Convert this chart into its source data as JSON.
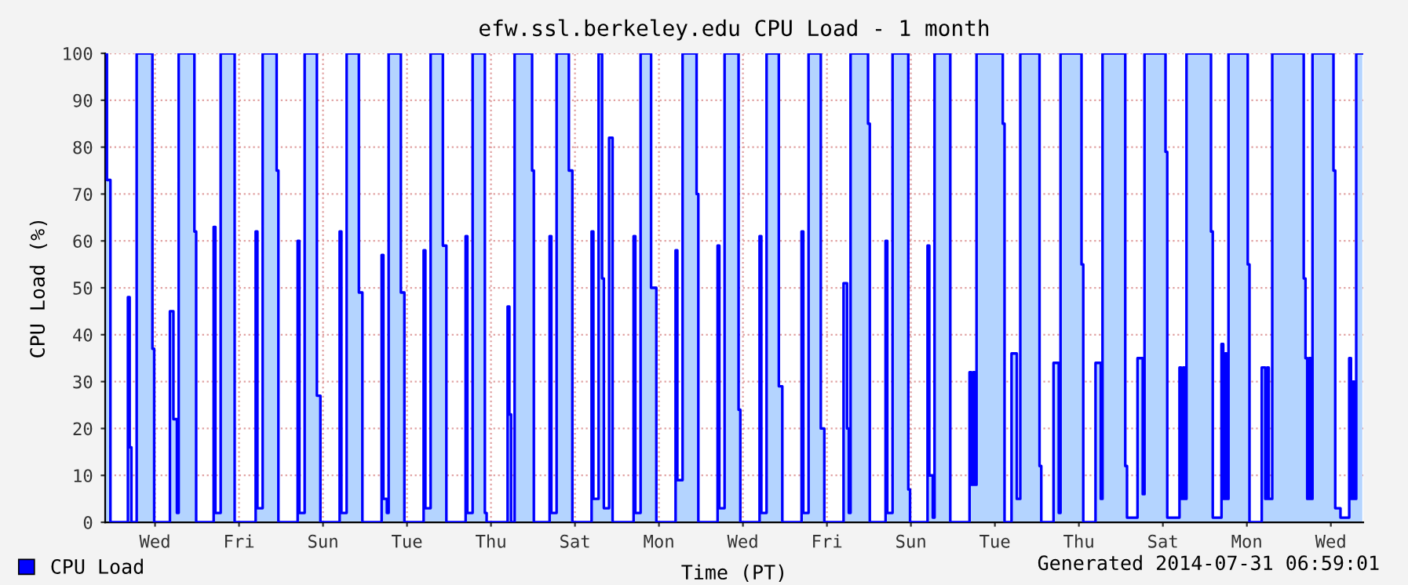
{
  "chart_data": {
    "type": "area",
    "title": "efw.ssl.berkeley.edu CPU Load - 1 month",
    "xlabel": "Time (PT)",
    "ylabel": "CPU Load (%)",
    "annotations": [
      "Generated 2014-07-31 06:59:01"
    ],
    "legend": "bottom left",
    "grid": true,
    "line_style": "solid",
    "categories": [
      null,
      null,
      null,
      null,
      null,
      null,
      null,
      null,
      null,
      null,
      null,
      null,
      null,
      null,
      null,
      null,
      null,
      null,
      null,
      null,
      null,
      null,
      null,
      null,
      null,
      null,
      null,
      null,
      "Wed",
      null,
      null,
      null,
      null,
      null,
      null,
      null,
      null,
      null,
      null,
      null,
      null,
      null,
      null,
      null,
      null,
      null,
      null,
      null,
      null,
      null,
      null,
      null,
      null,
      null,
      null,
      null,
      null,
      null,
      null,
      null,
      null,
      null,
      null,
      null,
      null,
      null,
      null,
      null,
      null,
      null,
      null,
      null,
      null,
      null,
      null,
      null,
      "Fri",
      null,
      null,
      null,
      null,
      null,
      null,
      null,
      null,
      null,
      null,
      null,
      null,
      null,
      null,
      null,
      null,
      null,
      null,
      null,
      null,
      null,
      null,
      null,
      null,
      null,
      null,
      null,
      null,
      null,
      null,
      null,
      null,
      null,
      null,
      null,
      null,
      null,
      null,
      null,
      null,
      null,
      null,
      null,
      null,
      null,
      null,
      null,
      "Sun",
      null,
      null,
      null,
      null,
      null,
      null,
      null,
      null,
      null,
      null,
      null,
      null,
      null,
      null,
      null,
      null,
      null,
      null,
      null,
      null,
      null,
      null,
      null,
      null,
      null,
      null,
      null,
      null,
      null,
      null,
      null,
      null,
      null,
      null,
      null,
      null,
      null,
      null,
      null,
      null,
      null,
      null,
      null,
      null,
      null,
      null,
      null,
      "Tue",
      null,
      null,
      null,
      null,
      null,
      null,
      null,
      null,
      null,
      null,
      null,
      null,
      null,
      null,
      null,
      null,
      null,
      null,
      null,
      null,
      null,
      null,
      null,
      null,
      null,
      null,
      null,
      null,
      null,
      null,
      null,
      null,
      null,
      null,
      null,
      null,
      null,
      null,
      null,
      null,
      null,
      null,
      null,
      null,
      null,
      null,
      null,
      "Thu",
      null,
      null,
      null,
      null,
      null,
      null,
      null,
      null,
      null,
      null,
      null,
      null,
      null,
      null,
      null,
      null,
      null,
      null,
      null,
      null,
      null,
      null,
      null,
      null,
      null,
      null,
      null,
      null,
      null,
      null,
      null,
      null,
      null,
      null,
      null,
      null,
      null,
      null,
      null,
      null,
      null,
      null,
      null,
      null,
      null,
      null,
      null,
      "Sat",
      null,
      null,
      null,
      null,
      null,
      null,
      null,
      null,
      null,
      null,
      null,
      null,
      null,
      null,
      null,
      null,
      null,
      null,
      null,
      null,
      null,
      null,
      null,
      null,
      null,
      null,
      null,
      null,
      null,
      null,
      null,
      null,
      null,
      null,
      null,
      null,
      null,
      null,
      null,
      null,
      null,
      null,
      null,
      null,
      null,
      null,
      null,
      "Mon",
      null,
      null,
      null,
      null,
      null,
      null,
      null,
      null,
      null,
      null,
      null,
      null,
      null,
      null,
      null,
      null,
      null,
      null,
      null,
      null,
      null,
      null,
      null,
      null,
      null,
      null,
      null,
      null,
      null,
      null,
      null,
      null,
      null,
      null,
      null,
      null,
      null,
      null,
      null,
      null,
      null,
      null,
      null,
      null,
      null,
      null,
      null,
      "Wed",
      null,
      null,
      null,
      null,
      null,
      null,
      null,
      null,
      null,
      null,
      null,
      null,
      null,
      null,
      null,
      null,
      null,
      null,
      null,
      null,
      null,
      null,
      null,
      null,
      null,
      null,
      null,
      null,
      null,
      null,
      null,
      null,
      null,
      null,
      null,
      null,
      null,
      null,
      null,
      null,
      null,
      null,
      null,
      null,
      null,
      null,
      null,
      "Fri",
      null,
      null,
      null,
      null,
      null,
      null,
      null,
      null,
      null,
      null,
      null,
      null,
      null,
      null,
      null,
      null,
      null,
      null,
      null,
      null,
      null,
      null,
      null,
      null,
      null,
      null,
      null,
      null,
      null,
      null,
      null,
      null,
      null,
      null,
      null,
      null,
      null,
      null,
      null,
      null,
      null,
      null,
      null,
      null,
      null,
      null,
      null,
      "Sun",
      null,
      null,
      null,
      null,
      null,
      null,
      null,
      null,
      null,
      null,
      null,
      null,
      null,
      null,
      null,
      null,
      null,
      null,
      null,
      null,
      null,
      null,
      null,
      null,
      null,
      null,
      null,
      null,
      null,
      null,
      null,
      null,
      null,
      null,
      null,
      null,
      null,
      null,
      null,
      null,
      null,
      null,
      null,
      null,
      null,
      null,
      null,
      "Tue",
      null,
      null,
      null,
      null,
      null,
      null,
      null,
      null,
      null,
      null,
      null,
      null,
      null,
      null,
      null,
      null,
      null,
      null,
      null,
      null,
      null,
      null,
      null,
      null,
      null,
      null,
      null,
      null,
      null,
      null,
      null,
      null,
      null,
      null,
      null,
      null,
      null,
      null,
      null,
      null,
      null,
      null,
      null,
      null,
      null,
      null,
      null,
      "Thu",
      null,
      null,
      null,
      null,
      null,
      null,
      null,
      null,
      null,
      null,
      null,
      null,
      null,
      null,
      null,
      null,
      null,
      null,
      null,
      null,
      null,
      null,
      null,
      null,
      null,
      null,
      null,
      null,
      null,
      null,
      null,
      null,
      null,
      null,
      null,
      null,
      null,
      null,
      null,
      null,
      null,
      null,
      null,
      null,
      null,
      null,
      null,
      "Sat",
      null,
      null,
      null,
      null,
      null,
      null,
      null,
      null,
      null,
      null,
      null,
      null,
      null,
      null,
      null,
      null,
      null,
      null,
      null,
      null,
      null,
      null,
      null,
      null,
      null,
      null,
      null,
      null,
      null,
      null,
      null,
      null,
      null,
      null,
      null,
      null,
      null,
      null,
      null,
      null,
      null,
      null,
      null,
      null,
      null,
      null,
      null,
      "Mon",
      null,
      null,
      null,
      null,
      null,
      null,
      null,
      null,
      null,
      null,
      null,
      null,
      null,
      null,
      null,
      null,
      null,
      null,
      null,
      null,
      null,
      null,
      null,
      null,
      null,
      null,
      null,
      null,
      null,
      null,
      null,
      null,
      null,
      null,
      null,
      null,
      null,
      null,
      null,
      null,
      null,
      null,
      null,
      null,
      null,
      null,
      null,
      "Wed",
      null,
      null,
      null,
      null,
      null,
      null,
      null,
      null,
      null,
      null,
      null,
      null,
      null,
      null,
      null,
      null,
      null,
      null
    ],
    "series": [
      {
        "name": "CPU Load",
        "color": "#0000ff",
        "values": [
          100,
          73,
          73,
          0,
          0,
          0,
          0,
          0,
          0,
          0,
          0,
          0,
          0,
          48,
          16,
          0,
          0,
          0,
          100,
          100,
          100,
          100,
          100,
          100,
          100,
          100,
          100,
          37,
          0,
          0,
          0,
          0,
          0,
          0,
          0,
          0,
          0,
          45,
          45,
          22,
          22,
          2,
          100,
          100,
          100,
          100,
          100,
          100,
          100,
          100,
          100,
          62,
          0,
          0,
          0,
          0,
          0,
          0,
          0,
          0,
          0,
          0,
          63,
          2,
          2,
          2,
          100,
          100,
          100,
          100,
          100,
          100,
          100,
          100,
          0,
          0,
          0,
          0,
          0,
          0,
          0,
          0,
          0,
          0,
          0,
          0,
          62,
          3,
          3,
          3,
          100,
          100,
          100,
          100,
          100,
          100,
          100,
          100,
          75,
          0,
          0,
          0,
          0,
          0,
          0,
          0,
          0,
          0,
          0,
          0,
          60,
          2,
          2,
          2,
          100,
          100,
          100,
          100,
          100,
          100,
          100,
          27,
          27,
          0,
          0,
          0,
          0,
          0,
          0,
          0,
          0,
          0,
          0,
          0,
          62,
          2,
          2,
          2,
          100,
          100,
          100,
          100,
          100,
          100,
          100,
          49,
          49,
          0,
          0,
          0,
          0,
          0,
          0,
          0,
          0,
          0,
          0,
          0,
          57,
          5,
          5,
          2,
          100,
          100,
          100,
          100,
          100,
          100,
          100,
          49,
          49,
          0,
          0,
          0,
          0,
          0,
          0,
          0,
          0,
          0,
          0,
          0,
          58,
          3,
          3,
          3,
          100,
          100,
          100,
          100,
          100,
          100,
          100,
          59,
          59,
          0,
          0,
          0,
          0,
          0,
          0,
          0,
          0,
          0,
          0,
          0,
          61,
          2,
          2,
          2,
          100,
          100,
          100,
          100,
          100,
          100,
          100,
          2,
          0,
          0,
          0,
          0,
          0,
          0,
          0,
          0,
          0,
          0,
          0,
          0,
          46,
          23,
          0,
          0,
          100,
          100,
          100,
          100,
          100,
          100,
          100,
          100,
          100,
          100,
          75,
          0,
          0,
          0,
          0,
          0,
          0,
          0,
          0,
          0,
          61,
          2,
          2,
          2,
          100,
          100,
          100,
          100,
          100,
          100,
          100,
          75,
          75,
          0,
          0,
          0,
          0,
          0,
          0,
          0,
          0,
          0,
          0,
          0,
          62,
          5,
          5,
          5,
          100,
          100,
          52,
          3,
          3,
          3,
          82,
          82,
          0,
          0,
          0,
          0,
          0,
          0,
          0,
          0,
          0,
          0,
          0,
          0,
          61,
          2,
          2,
          2,
          100,
          100,
          100,
          100,
          100,
          100,
          50,
          50,
          50,
          0,
          0,
          0,
          0,
          0,
          0,
          0,
          0,
          0,
          0,
          0,
          58,
          9,
          9,
          9,
          100,
          100,
          100,
          100,
          100,
          100,
          100,
          100,
          70,
          0,
          0,
          0,
          0,
          0,
          0,
          0,
          0,
          0,
          0,
          0,
          59,
          3,
          3,
          3,
          100,
          100,
          100,
          100,
          100,
          100,
          100,
          100,
          24,
          0,
          0,
          0,
          0,
          0,
          0,
          0,
          0,
          0,
          0,
          0,
          61,
          2,
          2,
          2,
          100,
          100,
          100,
          100,
          100,
          100,
          100,
          29,
          29,
          0,
          0,
          0,
          0,
          0,
          0,
          0,
          0,
          0,
          0,
          0,
          62,
          2,
          2,
          2,
          100,
          100,
          100,
          100,
          100,
          100,
          100,
          20,
          20,
          0,
          0,
          0,
          0,
          0,
          0,
          0,
          0,
          0,
          0,
          0,
          51,
          51,
          20,
          2,
          100,
          100,
          100,
          100,
          100,
          100,
          100,
          100,
          100,
          100,
          85,
          0,
          0,
          0,
          0,
          0,
          0,
          0,
          0,
          0,
          60,
          2,
          2,
          2,
          100,
          100,
          100,
          100,
          100,
          100,
          100,
          100,
          100,
          7,
          0,
          0,
          0,
          0,
          0,
          0,
          0,
          0,
          0,
          0,
          59,
          10,
          10,
          1,
          100,
          100,
          100,
          100,
          100,
          100,
          100,
          100,
          100,
          0,
          0,
          0,
          0,
          0,
          0,
          0,
          0,
          0,
          0,
          0,
          32,
          8,
          32,
          8,
          100,
          100,
          100,
          100,
          100,
          100,
          100,
          100,
          100,
          100,
          100,
          100,
          100,
          100,
          100,
          85,
          0,
          0,
          0,
          0,
          36,
          36,
          36,
          5,
          5,
          100,
          100,
          100,
          100,
          100,
          100,
          100,
          100,
          100,
          100,
          100,
          12,
          0,
          0,
          0,
          0,
          0,
          0,
          0,
          34,
          34,
          34,
          2,
          100,
          100,
          100,
          100,
          100,
          100,
          100,
          100,
          100,
          100,
          100,
          100,
          55,
          0,
          0,
          0,
          0,
          0,
          0,
          0,
          34,
          34,
          34,
          5,
          100,
          100,
          100,
          100,
          100,
          100,
          100,
          100,
          100,
          100,
          100,
          100,
          100,
          12,
          1,
          1,
          1,
          1,
          1,
          1,
          35,
          35,
          35,
          6,
          100,
          100,
          100,
          100,
          100,
          100,
          100,
          100,
          100,
          100,
          100,
          100,
          79,
          1,
          1,
          1,
          1,
          1,
          1,
          1,
          33,
          5,
          33,
          5,
          100,
          100,
          100,
          100,
          100,
          100,
          100,
          100,
          100,
          100,
          100,
          100,
          100,
          100,
          62,
          1,
          1,
          1,
          1,
          1,
          38,
          5,
          36,
          5,
          100,
          100,
          100,
          100,
          100,
          100,
          100,
          100,
          100,
          100,
          100,
          55,
          0,
          0,
          0,
          0,
          0,
          0,
          0,
          33,
          33,
          5,
          33,
          5,
          5,
          100,
          100,
          100,
          100,
          100,
          100,
          100,
          100,
          100,
          100,
          100,
          100,
          100,
          100,
          100,
          100,
          100,
          100,
          52,
          35,
          5,
          35,
          5,
          100,
          100,
          100,
          100,
          100,
          100,
          100,
          100,
          100,
          100,
          100,
          100,
          75,
          3,
          3,
          3,
          1,
          1,
          1,
          1,
          1,
          35,
          5,
          30,
          5,
          100,
          100,
          100,
          100
        ]
      }
    ],
    "ylim": [
      0,
      100
    ],
    "yticks": [
      0,
      10,
      20,
      30,
      40,
      50,
      60,
      70,
      80,
      90,
      100
    ]
  }
}
